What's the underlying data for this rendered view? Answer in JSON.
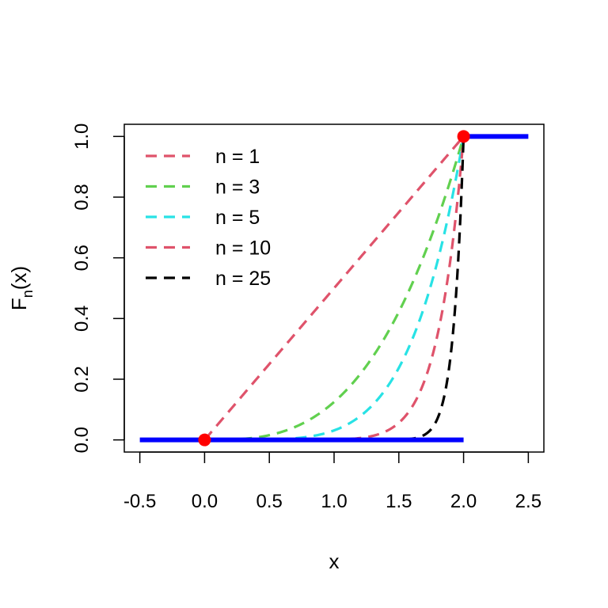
{
  "chart_data": {
    "type": "line",
    "title": "",
    "xlabel": "x",
    "ylabel": "F",
    "ylabel_subscript": "n",
    "ylabel_suffix": "(x)",
    "xlim": [
      -0.62,
      2.62
    ],
    "ylim": [
      -0.04,
      1.04
    ],
    "x_ticks": [
      -0.5,
      0.0,
      0.5,
      1.0,
      1.5,
      2.0,
      2.5
    ],
    "x_tick_labels": [
      "-0.5",
      "0.0",
      "0.5",
      "1.0",
      "1.5",
      "2.0",
      "2.5"
    ],
    "y_ticks": [
      0.0,
      0.2,
      0.4,
      0.6,
      0.8,
      1.0
    ],
    "y_tick_labels": [
      "0.0",
      "0.2",
      "0.4",
      "0.6",
      "0.8",
      "1.0"
    ],
    "grid": false,
    "legend_position": "top-left",
    "series": [
      {
        "name": "n = 1",
        "color": "#DF536B",
        "dash": true,
        "n": 1
      },
      {
        "name": "n = 3",
        "color": "#61D04F",
        "dash": true,
        "n": 3
      },
      {
        "name": "n = 5",
        "color": "#28E2E5",
        "dash": true,
        "n": 5
      },
      {
        "name": "n = 10",
        "color": "#DF536B",
        "dash": true,
        "n": 10
      },
      {
        "name": "n = 25",
        "color": "#000000",
        "dash": true,
        "n": 25
      }
    ],
    "curve_domain": [
      0,
      2
    ],
    "limit_function": {
      "color": "#0000FF",
      "segments": [
        {
          "x": [
            -0.5,
            2.0
          ],
          "y": [
            0,
            0
          ]
        },
        {
          "x": [
            2.0,
            2.5
          ],
          "y": [
            1,
            1
          ]
        }
      ]
    },
    "endpoints": {
      "color": "#FF0000",
      "points": [
        {
          "x": 0,
          "y": 0
        },
        {
          "x": 2,
          "y": 1
        }
      ]
    }
  }
}
